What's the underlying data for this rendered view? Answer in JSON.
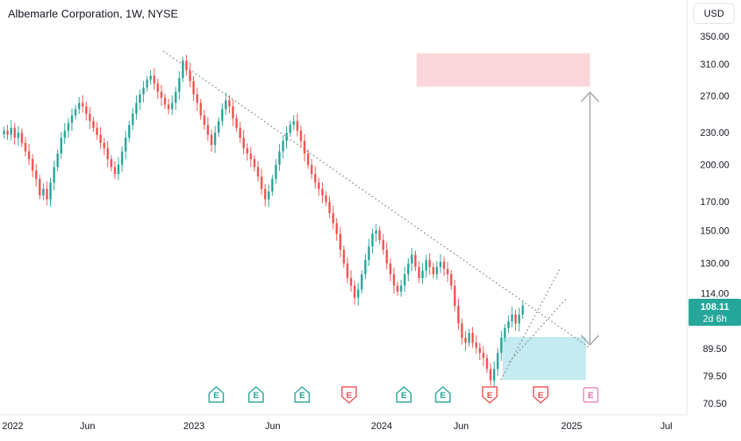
{
  "header": {
    "title": "Albemarle Corporation, 1W, NYSE"
  },
  "toolbar": {
    "currency": "USD"
  },
  "price_badge": {
    "price": "108.11",
    "countdown": "2d 6h"
  },
  "colors": {
    "up": "#26a69a",
    "down": "#ef5350",
    "badge": "#26a69a",
    "target_zone": "#f9c9cf",
    "support_zone": "#b8e8ef",
    "trendline": "#7a7a7a"
  },
  "chart_data": {
    "type": "candlestick",
    "title": "Albemarle Corporation, 1W, NYSE",
    "x_ticks": [
      "2022",
      "Jun",
      "2023",
      "Jun",
      "2024",
      "Jun",
      "2025",
      "Jul"
    ],
    "y_ticks": [
      "350.00",
      "310.00",
      "270.00",
      "230.00",
      "200.00",
      "170.00",
      "150.00",
      "130.00",
      "114.00",
      "89.50",
      "79.50",
      "70.50"
    ],
    "y_scale": "log",
    "y_range": [
      68,
      375
    ],
    "last_price": 108.11,
    "earnings_markers": [
      {
        "label": "E",
        "type": "past-beat"
      },
      {
        "label": "E",
        "type": "past-beat"
      },
      {
        "label": "E",
        "type": "past-beat"
      },
      {
        "label": "E",
        "type": "past-miss"
      },
      {
        "label": "E",
        "type": "past-beat"
      },
      {
        "label": "E",
        "type": "past-beat"
      },
      {
        "label": "E",
        "type": "past-miss"
      },
      {
        "label": "E",
        "type": "past-miss"
      },
      {
        "label": "E",
        "type": "upcoming"
      }
    ],
    "closes": [
      232,
      228,
      235,
      225,
      230,
      220,
      212,
      205,
      195,
      188,
      175,
      180,
      172,
      185,
      198,
      210,
      225,
      232,
      240,
      248,
      255,
      262,
      258,
      250,
      242,
      235,
      228,
      220,
      215,
      205,
      198,
      192,
      200,
      212,
      225,
      238,
      250,
      262,
      272,
      280,
      290,
      295,
      285,
      275,
      268,
      260,
      255,
      262,
      275,
      292,
      315,
      302,
      288,
      272,
      262,
      248,
      238,
      228,
      218,
      230,
      242,
      255,
      265,
      258,
      245,
      235,
      225,
      215,
      210,
      205,
      198,
      190,
      180,
      172,
      178,
      188,
      200,
      212,
      222,
      230,
      238,
      242,
      232,
      222,
      210,
      200,
      192,
      185,
      180,
      175,
      170,
      162,
      155,
      148,
      138,
      130,
      122,
      118,
      112,
      116,
      124,
      132,
      140,
      148,
      150,
      144,
      138,
      130,
      124,
      118,
      115,
      118,
      124,
      130,
      135,
      128,
      122,
      126,
      132,
      128,
      124,
      128,
      131,
      127,
      124,
      118,
      108,
      100,
      94,
      92,
      96,
      92,
      90,
      88,
      86,
      82,
      78,
      82,
      88,
      94,
      98,
      101,
      104,
      100,
      104,
      108.11
    ]
  }
}
